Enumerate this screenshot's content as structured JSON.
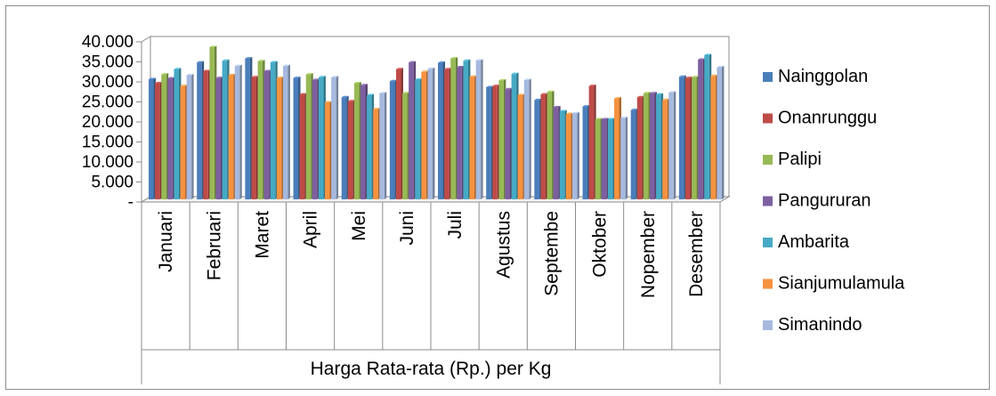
{
  "chart_data": {
    "type": "bar",
    "title": "",
    "xlabel": "Harga Rata-rata (Rp.) per Kg",
    "ylabel": "",
    "ylim": [
      0,
      40000
    ],
    "yticks": [
      {
        "value": 0,
        "label": "-"
      },
      {
        "value": 5000,
        "label": "5.000"
      },
      {
        "value": 10000,
        "label": "10.000"
      },
      {
        "value": 15000,
        "label": "15.000"
      },
      {
        "value": 20000,
        "label": "20.000"
      },
      {
        "value": 25000,
        "label": "25.000"
      },
      {
        "value": 30000,
        "label": "30.000"
      },
      {
        "value": 35000,
        "label": "35.000"
      },
      {
        "value": 40000,
        "label": "40.000"
      }
    ],
    "grid": false,
    "legend_position": "right",
    "bar_style": "3d",
    "categories": [
      "Januari",
      "Februari",
      "Maret",
      "April",
      "Mei",
      "Juni",
      "Juli",
      "Agustus",
      "Septembe",
      "Oktober",
      "Nopember",
      "Desember"
    ],
    "series": [
      {
        "name": "Nainggolan",
        "color": "#4a7ebb",
        "values": [
          30000,
          34200,
          35200,
          30300,
          25500,
          29500,
          34100,
          28000,
          24800,
          23200,
          22300,
          30600
        ]
      },
      {
        "name": "Onanrunggu",
        "color": "#be4b48",
        "values": [
          29000,
          32000,
          30500,
          26200,
          24500,
          32500,
          32500,
          28300,
          26200,
          28300,
          25500,
          30300
        ]
      },
      {
        "name": "Palipi",
        "color": "#98b954",
        "values": [
          31200,
          38000,
          34500,
          31200,
          29000,
          26500,
          35200,
          29700,
          26800,
          20000,
          26500,
          30500
        ]
      },
      {
        "name": "Pangururan",
        "color": "#7d60a0",
        "values": [
          30200,
          30300,
          32000,
          29800,
          28500,
          34200,
          33000,
          27500,
          23000,
          20000,
          26500,
          34900
        ]
      },
      {
        "name": "Ambarita",
        "color": "#46aac5",
        "values": [
          32500,
          34600,
          34200,
          30500,
          26000,
          29900,
          34600,
          31300,
          22000,
          20000,
          26200,
          36000
        ]
      },
      {
        "name": "Sianjumulamula",
        "color": "#f69240",
        "values": [
          28300,
          31000,
          30300,
          24200,
          22500,
          31800,
          30600,
          26000,
          21300,
          25200,
          24800,
          30800
        ]
      },
      {
        "name": "Simanindo",
        "color": "#a6b9de",
        "values": [
          31000,
          33300,
          33300,
          30500,
          26500,
          32600,
          34700,
          29800,
          21500,
          20300,
          26700,
          33000
        ]
      }
    ]
  }
}
